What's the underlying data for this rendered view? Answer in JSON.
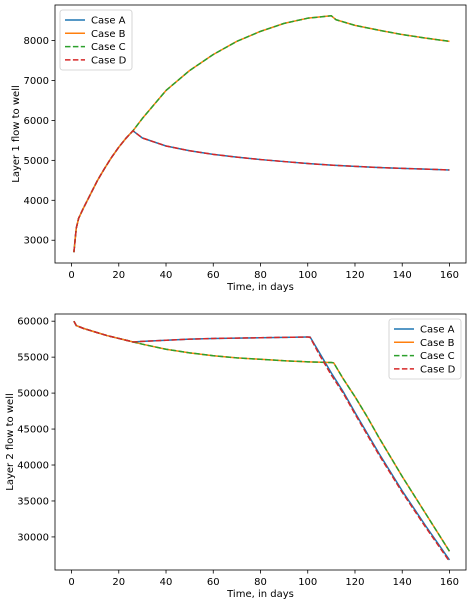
{
  "chart_data": [
    {
      "type": "line",
      "title": "",
      "xlabel": "Time, in days",
      "ylabel": "Layer 1 flow to well",
      "xlim": [
        -7,
        167
      ],
      "ylim": [
        2430,
        8890
      ],
      "xticks": [
        0,
        20,
        40,
        60,
        80,
        100,
        120,
        140,
        160
      ],
      "yticks": [
        3000,
        4000,
        5000,
        6000,
        7000,
        8000
      ],
      "grid": false,
      "legend": "top-left",
      "series": [
        {
          "name": "Case A",
          "color": "#1f77b4",
          "style": "solid",
          "x": [
            1,
            2,
            3,
            5,
            8,
            11,
            14,
            17,
            20,
            23,
            26,
            30,
            40,
            50,
            60,
            70,
            80,
            90,
            100,
            110,
            120,
            130,
            140,
            150,
            160
          ],
          "y": [
            2700,
            3300,
            3550,
            3800,
            4150,
            4500,
            4800,
            5080,
            5330,
            5550,
            5740,
            5560,
            5360,
            5240,
            5150,
            5080,
            5020,
            4970,
            4920,
            4880,
            4850,
            4820,
            4800,
            4780,
            4760
          ]
        },
        {
          "name": "Case B",
          "color": "#ff7f0e",
          "style": "solid",
          "x": [
            1,
            2,
            3,
            5,
            8,
            11,
            14,
            17,
            20,
            23,
            26,
            30,
            40,
            50,
            60,
            70,
            80,
            90,
            100,
            110,
            112,
            120,
            130,
            140,
            150,
            160
          ],
          "y": [
            2700,
            3300,
            3550,
            3800,
            4150,
            4500,
            4800,
            5080,
            5330,
            5550,
            5740,
            6050,
            6750,
            7250,
            7650,
            7980,
            8230,
            8430,
            8560,
            8620,
            8520,
            8380,
            8260,
            8150,
            8060,
            7980
          ]
        },
        {
          "name": "Case C",
          "color": "#2ca02c",
          "style": "dashed",
          "x": [
            1,
            2,
            3,
            5,
            8,
            11,
            14,
            17,
            20,
            23,
            26,
            30,
            40,
            50,
            60,
            70,
            80,
            90,
            100,
            110,
            112,
            120,
            130,
            140,
            150,
            160
          ],
          "y": [
            2700,
            3300,
            3550,
            3800,
            4150,
            4500,
            4800,
            5080,
            5330,
            5550,
            5740,
            6050,
            6750,
            7250,
            7650,
            7980,
            8230,
            8430,
            8560,
            8620,
            8520,
            8380,
            8260,
            8150,
            8060,
            7980
          ]
        },
        {
          "name": "Case D",
          "color": "#d62728",
          "style": "dashed",
          "x": [
            1,
            2,
            3,
            5,
            8,
            11,
            14,
            17,
            20,
            23,
            26,
            30,
            40,
            50,
            60,
            70,
            80,
            90,
            100,
            110,
            120,
            130,
            140,
            150,
            160
          ],
          "y": [
            2700,
            3300,
            3550,
            3800,
            4150,
            4500,
            4800,
            5080,
            5330,
            5550,
            5740,
            5560,
            5360,
            5240,
            5150,
            5080,
            5020,
            4970,
            4920,
            4880,
            4850,
            4820,
            4800,
            4780,
            4760
          ]
        }
      ]
    },
    {
      "type": "line",
      "title": "",
      "xlabel": "Time, in days",
      "ylabel": "Layer 2 flow to well",
      "xlim": [
        -7,
        167
      ],
      "ylim": [
        25400,
        61000
      ],
      "xticks": [
        0,
        20,
        40,
        60,
        80,
        100,
        120,
        140,
        160
      ],
      "yticks": [
        30000,
        35000,
        40000,
        45000,
        50000,
        55000,
        60000
      ],
      "grid": false,
      "legend": "top-right",
      "series": [
        {
          "name": "Case A",
          "color": "#1f77b4",
          "style": "solid",
          "x": [
            1,
            2,
            5,
            10,
            15,
            20,
            25,
            26,
            30,
            40,
            50,
            60,
            70,
            80,
            90,
            100,
            101,
            105,
            110,
            115,
            120,
            130,
            140,
            150,
            160
          ],
          "y": [
            60000,
            59400,
            59000,
            58500,
            58000,
            57600,
            57200,
            57100,
            57200,
            57350,
            57500,
            57600,
            57650,
            57700,
            57750,
            57800,
            57800,
            55600,
            52800,
            50200,
            47300,
            41700,
            36400,
            31500,
            26800
          ]
        },
        {
          "name": "Case B",
          "color": "#ff7f0e",
          "style": "solid",
          "x": [
            1,
            2,
            5,
            10,
            15,
            20,
            25,
            30,
            40,
            50,
            60,
            70,
            80,
            90,
            100,
            110,
            111,
            115,
            120,
            125,
            130,
            140,
            150,
            160
          ],
          "y": [
            60000,
            59400,
            59000,
            58500,
            58000,
            57600,
            57200,
            56800,
            56100,
            55600,
            55200,
            54900,
            54700,
            54500,
            54350,
            54250,
            54200,
            52000,
            49500,
            46800,
            43900,
            38400,
            33200,
            28000
          ]
        },
        {
          "name": "Case C",
          "color": "#2ca02c",
          "style": "dashed",
          "x": [
            1,
            2,
            5,
            10,
            15,
            20,
            25,
            30,
            40,
            50,
            60,
            70,
            80,
            90,
            100,
            110,
            111,
            115,
            120,
            125,
            130,
            140,
            150,
            160
          ],
          "y": [
            60000,
            59400,
            59000,
            58500,
            58000,
            57600,
            57200,
            56800,
            56100,
            55600,
            55200,
            54900,
            54700,
            54500,
            54350,
            54250,
            54200,
            52000,
            49500,
            46800,
            43900,
            38400,
            33200,
            28000
          ]
        },
        {
          "name": "Case D",
          "color": "#d62728",
          "style": "dashed",
          "x": [
            1,
            2,
            5,
            10,
            15,
            20,
            25,
            26,
            30,
            40,
            50,
            60,
            70,
            80,
            90,
            100,
            101,
            105,
            110,
            115,
            120,
            130,
            140,
            150,
            160
          ],
          "y": [
            60000,
            59400,
            59000,
            58500,
            58000,
            57600,
            57200,
            57100,
            57200,
            57350,
            57500,
            57600,
            57650,
            57700,
            57750,
            57800,
            57750,
            55300,
            52500,
            50000,
            47100,
            41500,
            36200,
            31300,
            26600
          ]
        }
      ]
    }
  ]
}
